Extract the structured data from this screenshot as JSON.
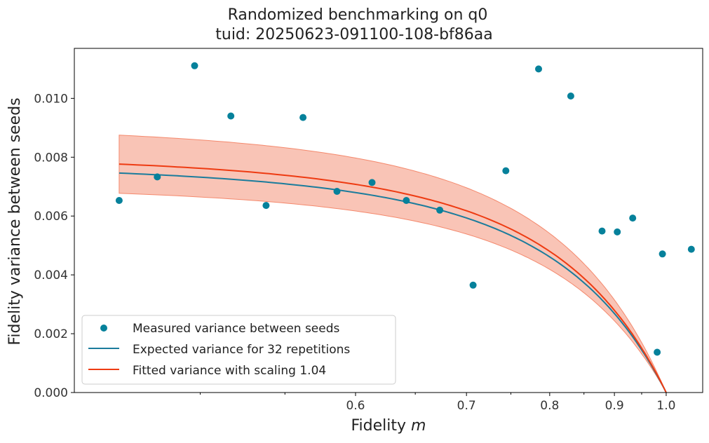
{
  "chart_data": {
    "type": "scatter",
    "title": "Randomized benchmarking on q0",
    "subtitle": "tuid: 20250623-091100-108-bf86aa",
    "xlabel": "Fidelity",
    "xlabel_symbol": "m",
    "ylabel": "Fidelity variance between seeds",
    "xscale": "reciprocal",
    "xlim": [
      0.4405,
      1.085
    ],
    "ylim": [
      0.0,
      0.0117
    ],
    "xticks": [
      0.6,
      0.7,
      0.8,
      0.9,
      1.0
    ],
    "xtick_labels": [
      "0.6",
      "0.7",
      "0.8",
      "0.9",
      "1.0"
    ],
    "yticks": [
      0.0,
      0.002,
      0.004,
      0.006,
      0.008,
      0.01
    ],
    "ytick_labels": [
      "0.000",
      "0.002",
      "0.004",
      "0.006",
      "0.008",
      "0.010"
    ],
    "grid": false,
    "legend_position": "lower-left",
    "series": [
      {
        "name": "Measured variance between seeds",
        "kind": "scatter",
        "color": "#06819b",
        "x": [
          0.46,
          0.478,
          0.497,
          0.517,
          0.538,
          0.562,
          0.586,
          0.613,
          0.642,
          0.673,
          0.707,
          0.744,
          0.785,
          0.83,
          0.879,
          0.933,
          0.992,
          1.057
        ],
        "y": [
          0.00653,
          0.00733,
          0.01111,
          0.0094,
          0.00636,
          0.00935,
          0.00684,
          0.00714,
          0.00653,
          0.0062,
          0.00365,
          0.00754,
          0.011,
          0.01008,
          0.00549,
          0.00593,
          0.00471,
          0.00487
        ]
      },
      {
        "name": "Expected variance for 32 repetitions",
        "kind": "line",
        "color": "#1b7c9c",
        "formula": "0.00781 * (1 - m^4)"
      },
      {
        "name": "Fitted variance with scaling 1.04",
        "kind": "line",
        "color": "#ee3b12",
        "formula": "0.00813 * (1 - m^4)"
      }
    ],
    "band": {
      "color": "#f4896d",
      "lower_scale": 0.00709,
      "upper_scale": 0.00916
    },
    "extra_points": [
      {
        "x": 0.905,
        "y": 0.00546
      },
      {
        "x": 0.981,
        "y": 0.00137
      }
    ]
  }
}
